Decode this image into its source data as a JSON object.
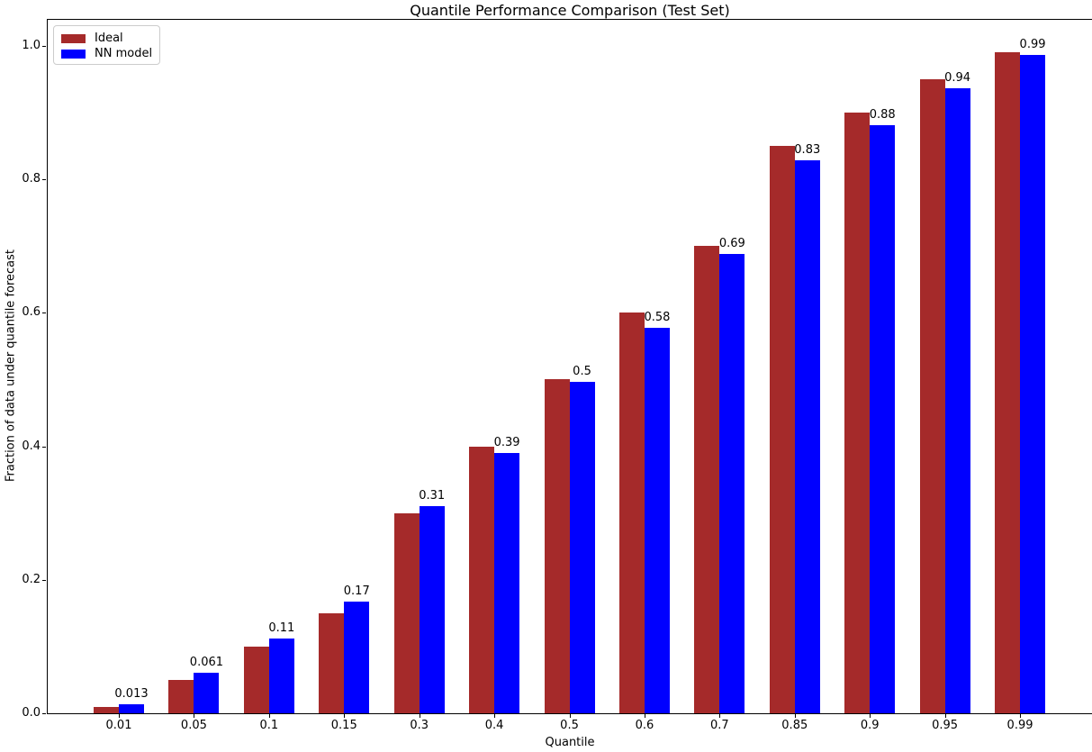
{
  "chart_data": {
    "type": "bar",
    "title": "Quantile Performance Comparison (Test Set)",
    "xlabel": "Quantile",
    "ylabel": "Fraction of data under quantile forecast",
    "categories": [
      "0.01",
      "0.05",
      "0.1",
      "0.15",
      "0.3",
      "0.4",
      "0.5",
      "0.6",
      "0.7",
      "0.85",
      "0.9",
      "0.95",
      "0.99"
    ],
    "series": [
      {
        "name": "Ideal",
        "color": "#A52A2A",
        "values": [
          0.01,
          0.05,
          0.1,
          0.15,
          0.3,
          0.4,
          0.5,
          0.6,
          0.7,
          0.85,
          0.9,
          0.95,
          0.99
        ]
      },
      {
        "name": "NN model",
        "color": "#0000FF",
        "values": [
          0.013,
          0.061,
          0.112,
          0.168,
          0.31,
          0.39,
          0.497,
          0.578,
          0.688,
          0.828,
          0.881,
          0.936,
          0.987
        ],
        "bar_labels": [
          "0.013",
          "0.061",
          "0.11",
          "0.17",
          "0.31",
          "0.39",
          "0.5",
          "0.58",
          "0.69",
          "0.83",
          "0.88",
          "0.94",
          "0.99"
        ]
      }
    ],
    "ytick_labels": [
      "0.0",
      "0.2",
      "0.4",
      "0.6",
      "0.8",
      "1.0"
    ],
    "yticks": [
      0.0,
      0.2,
      0.4,
      0.6,
      0.8,
      1.0
    ],
    "ylim": [
      0.0,
      1.04
    ],
    "grid": false,
    "legend_position": "upper left"
  }
}
